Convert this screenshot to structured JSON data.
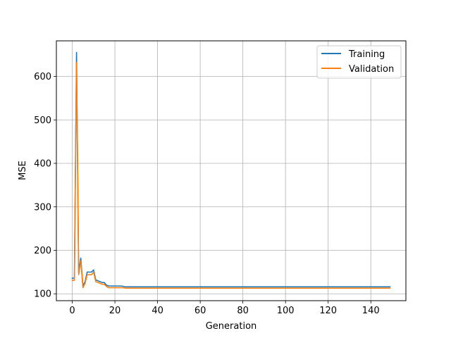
{
  "chart_data": {
    "type": "line",
    "xlabel": "Generation",
    "ylabel": "MSE",
    "xlim": [
      -7.45,
      156.45
    ],
    "ylim": [
      84.2,
      681.8
    ],
    "xticks": [
      0,
      20,
      40,
      60,
      80,
      100,
      120,
      140
    ],
    "yticks": [
      100,
      200,
      300,
      400,
      500,
      600
    ],
    "grid": true,
    "legend": "top-right",
    "series": [
      {
        "name": "Training",
        "color": "#1f77b4",
        "x": [
          0,
          1,
          2,
          3,
          4,
          5,
          6,
          7,
          8,
          9,
          10,
          11,
          12,
          13,
          14,
          15,
          16,
          17,
          18,
          19,
          20,
          21,
          22,
          23,
          24,
          25,
          30,
          40,
          60,
          80,
          100,
          120,
          140,
          149
        ],
        "y": [
          136,
          136,
          655,
          150,
          182,
          118,
          128,
          150,
          150,
          150,
          155,
          132,
          130,
          128,
          126,
          126,
          120,
          118,
          118,
          118,
          118,
          118,
          118,
          118,
          117,
          116,
          116,
          116,
          116,
          116,
          116,
          116,
          116,
          116
        ]
      },
      {
        "name": "Validation",
        "color": "#ff7f0e",
        "x": [
          0,
          1,
          2,
          3,
          4,
          5,
          6,
          7,
          8,
          9,
          10,
          11,
          12,
          13,
          14,
          15,
          16,
          17,
          18,
          19,
          20,
          21,
          22,
          23,
          24,
          25,
          30,
          40,
          60,
          80,
          100,
          120,
          140,
          149
        ],
        "y": [
          131,
          131,
          632,
          144,
          175,
          114,
          124,
          144,
          144,
          144,
          150,
          128,
          126,
          124,
          122,
          122,
          117,
          114,
          114,
          114,
          114,
          114,
          114,
          114,
          114,
          113,
          113,
          113,
          113,
          113,
          113,
          113,
          113,
          113
        ]
      }
    ]
  }
}
